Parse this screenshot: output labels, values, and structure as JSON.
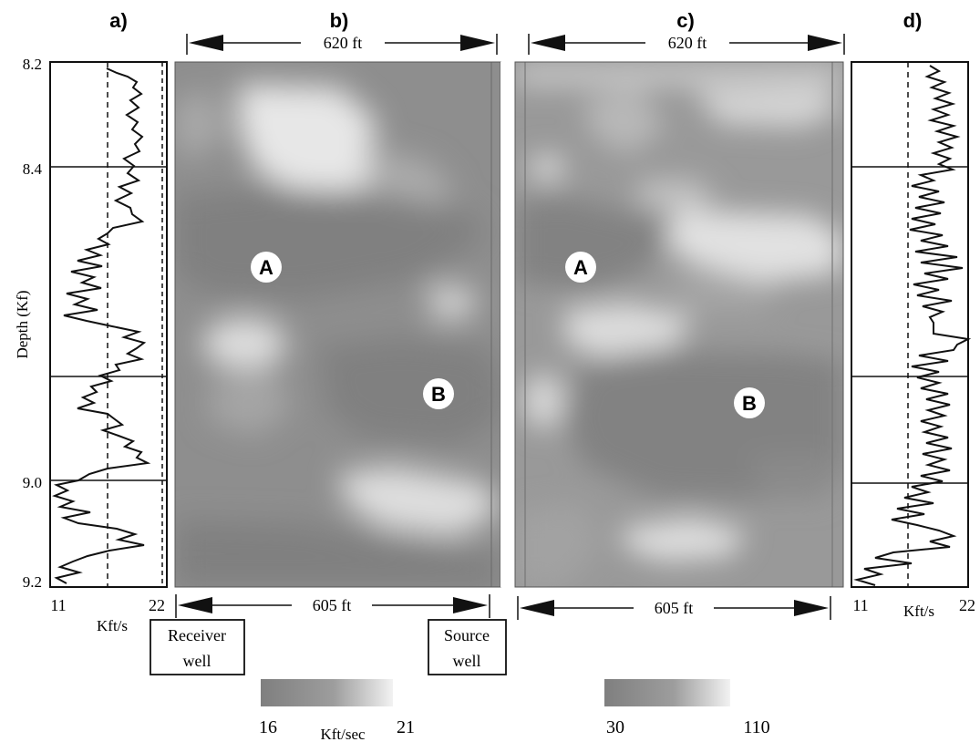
{
  "panels": {
    "a": "a)",
    "b": "b)",
    "c": "c)",
    "d": "d)"
  },
  "log_left": {
    "axis_label": "Depth (Kf)",
    "depth_ticks": [
      "8.2",
      "8.4",
      "9.0",
      "9.2"
    ],
    "x_min": "11",
    "x_max": "22",
    "unit": "Kft/s"
  },
  "log_right": {
    "x_min": "11",
    "x_max": "22",
    "unit": "Kft/s"
  },
  "tomogram_b": {
    "top_span": "620 ft",
    "bottom_span": "605 ft",
    "marker_a": "A",
    "marker_b": "B"
  },
  "tomogram_c": {
    "top_span": "620 ft",
    "bottom_span": "605 ft",
    "marker_a": "A",
    "marker_b": "B"
  },
  "wells": {
    "receiver": [
      "Receiver",
      "well"
    ],
    "source": [
      "Source",
      "well"
    ]
  },
  "colorbar_b": {
    "min": "16",
    "max": "21",
    "unit": "Kft/sec"
  },
  "colorbar_c": {
    "min": "30",
    "max": "110"
  },
  "colors": {
    "dark": "#7f7f7f",
    "light": "#e6e6e6",
    "frame": "#111111"
  }
}
